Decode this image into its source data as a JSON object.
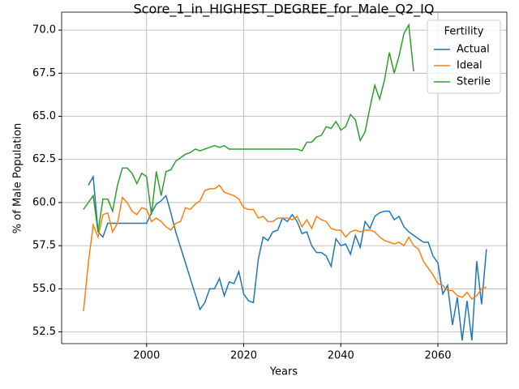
{
  "chart_data": {
    "type": "line",
    "title": "Score_1_in_HIGHEST_DEGREE_for_Male_Q2_IQ",
    "xlabel": "Years",
    "ylabel": "% of Male Population",
    "legend_title": "Fertility",
    "legend_loc": "upper right",
    "grid": true,
    "x": [
      1987,
      1988,
      1989,
      1990,
      1991,
      1992,
      1993,
      1994,
      1995,
      1996,
      1997,
      1998,
      1999,
      2000,
      2001,
      2002,
      2003,
      2004,
      2005,
      2006,
      2007,
      2008,
      2009,
      2010,
      2011,
      2012,
      2013,
      2014,
      2015,
      2016,
      2017,
      2018,
      2019,
      2020,
      2021,
      2022,
      2023,
      2024,
      2025,
      2026,
      2027,
      2028,
      2029,
      2030,
      2031,
      2032,
      2033,
      2034,
      2035,
      2036,
      2037,
      2038,
      2039,
      2040,
      2041,
      2042,
      2043,
      2044,
      2045,
      2046,
      2047,
      2048,
      2049,
      2050,
      2051,
      2052,
      2053,
      2054,
      2055,
      2056,
      2057,
      2058,
      2059,
      2060,
      2061,
      2062,
      2063,
      2064,
      2065,
      2066,
      2067,
      2068,
      2069,
      2070
    ],
    "series": [
      {
        "name": "Actual",
        "color": "#1f77b4",
        "values": [
          null,
          61.0,
          61.5,
          58.3,
          58.0,
          58.8,
          58.8,
          58.8,
          58.8,
          58.8,
          58.8,
          58.8,
          58.8,
          58.8,
          59.4,
          59.9,
          60.1,
          60.4,
          59.4,
          58.3,
          57.4,
          56.5,
          55.6,
          54.7,
          53.8,
          54.2,
          55.0,
          55.0,
          55.6,
          54.6,
          55.4,
          55.3,
          56.0,
          54.7,
          54.3,
          54.2,
          56.7,
          58.0,
          57.8,
          58.3,
          58.4,
          59.1,
          58.9,
          59.3,
          58.9,
          58.2,
          58.3,
          57.5,
          57.1,
          57.1,
          56.9,
          56.3,
          57.9,
          57.5,
          57.6,
          57.0,
          58.1,
          57.4,
          58.9,
          58.5,
          59.2,
          59.4,
          59.5,
          59.5,
          59.0,
          59.2,
          58.6,
          58.3,
          58.1,
          57.9,
          57.7,
          57.7,
          56.9,
          56.5,
          54.7,
          55.2,
          52.9,
          54.5,
          52.0,
          54.3,
          52.0,
          56.6,
          54.1,
          57.3
        ]
      },
      {
        "name": "Ideal",
        "color": "#ff7f0e",
        "values": [
          53.7,
          56.5,
          58.7,
          58.0,
          59.3,
          59.4,
          58.3,
          58.8,
          60.3,
          60.0,
          59.5,
          59.3,
          59.7,
          59.6,
          58.9,
          59.1,
          58.9,
          58.6,
          58.4,
          58.8,
          58.9,
          59.7,
          59.6,
          59.9,
          60.1,
          60.7,
          60.8,
          60.8,
          61.0,
          60.6,
          60.5,
          60.4,
          60.2,
          59.7,
          59.6,
          59.6,
          59.1,
          59.2,
          58.9,
          58.9,
          59.1,
          59.1,
          59.1,
          59.0,
          59.2,
          58.6,
          59.0,
          58.5,
          59.2,
          59.0,
          58.9,
          58.5,
          58.4,
          58.4,
          58.0,
          58.3,
          58.4,
          58.3,
          58.4,
          58.4,
          58.3,
          58.0,
          57.8,
          57.7,
          57.6,
          57.7,
          57.5,
          58.0,
          57.5,
          57.3,
          56.6,
          56.2,
          55.8,
          55.3,
          55.2,
          54.9,
          54.9,
          54.6,
          54.5,
          54.8,
          54.4,
          54.6,
          55.0,
          55.1
        ]
      },
      {
        "name": "Sterile",
        "color": "#2ca02c",
        "values": [
          59.6,
          60.0,
          60.4,
          58.3,
          60.2,
          60.2,
          59.5,
          61.0,
          62.0,
          62.0,
          61.7,
          61.1,
          61.7,
          61.5,
          59.3,
          61.8,
          60.4,
          61.8,
          61.9,
          62.4,
          62.6,
          62.8,
          62.9,
          63.1,
          63.0,
          63.1,
          63.2,
          63.3,
          63.2,
          63.3,
          63.1,
          63.1,
          63.1,
          63.1,
          63.1,
          63.1,
          63.1,
          63.1,
          63.1,
          63.1,
          63.1,
          63.1,
          63.1,
          63.1,
          63.1,
          63.0,
          63.5,
          63.5,
          63.8,
          63.9,
          64.4,
          64.3,
          64.7,
          64.2,
          64.4,
          65.1,
          64.8,
          63.6,
          64.1,
          65.5,
          66.8,
          66.0,
          67.1,
          68.7,
          67.5,
          68.5,
          69.8,
          70.3,
          67.6,
          null,
          null,
          null,
          null,
          null,
          null,
          null,
          null,
          null,
          null,
          null,
          null,
          null,
          null,
          null
        ]
      }
    ],
    "xlim": [
      1982.5,
      2074.2
    ],
    "xticks": [
      2000,
      2020,
      2040,
      2060
    ],
    "ylim": [
      51.82,
      71.04
    ],
    "yticks": [
      {
        "value": 52.5,
        "label": "52.5"
      },
      {
        "value": 55,
        "label": "55.0"
      },
      {
        "value": 57.5,
        "label": "57.5"
      },
      {
        "value": 60,
        "label": "60.0"
      },
      {
        "value": 62.5,
        "label": "62.5"
      },
      {
        "value": 65,
        "label": "65.0"
      },
      {
        "value": 67.5,
        "label": "67.5"
      },
      {
        "value": 70,
        "label": "70.0"
      }
    ]
  }
}
